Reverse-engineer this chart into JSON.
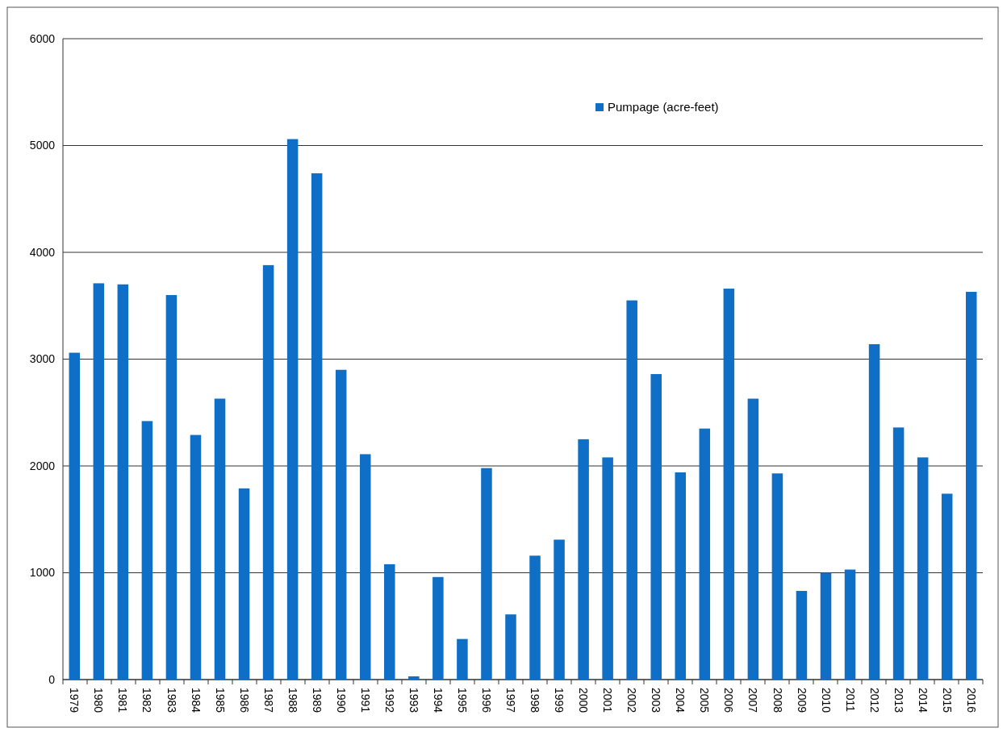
{
  "chart_data": {
    "type": "bar",
    "categories": [
      "1979",
      "1980",
      "1981",
      "1982",
      "1983",
      "1984",
      "1985",
      "1986",
      "1987",
      "1988",
      "1989",
      "1990",
      "1991",
      "1992",
      "1993",
      "1994",
      "1995",
      "1996",
      "1997",
      "1998",
      "1999",
      "2000",
      "2001",
      "2002",
      "2003",
      "2004",
      "2005",
      "2006",
      "2007",
      "2008",
      "2009",
      "2010",
      "2011",
      "2012",
      "2013",
      "2014",
      "2015",
      "2016"
    ],
    "series": [
      {
        "name": "Pumpage (acre-feet)",
        "color": "#0f6fc6",
        "values": [
          3060,
          3710,
          3700,
          2420,
          3600,
          2290,
          2630,
          1790,
          3880,
          5060,
          4740,
          2900,
          2110,
          1080,
          30,
          960,
          380,
          1980,
          610,
          1160,
          1310,
          2250,
          2080,
          3550,
          2860,
          1940,
          2350,
          3660,
          2630,
          1930,
          830,
          1000,
          1030,
          3140,
          2360,
          2080,
          1740,
          3630
        ]
      }
    ],
    "ylim": [
      0,
      6000
    ],
    "yticks": [
      0,
      1000,
      2000,
      3000,
      4000,
      5000,
      6000
    ],
    "grid": "y",
    "legend": "top right"
  }
}
